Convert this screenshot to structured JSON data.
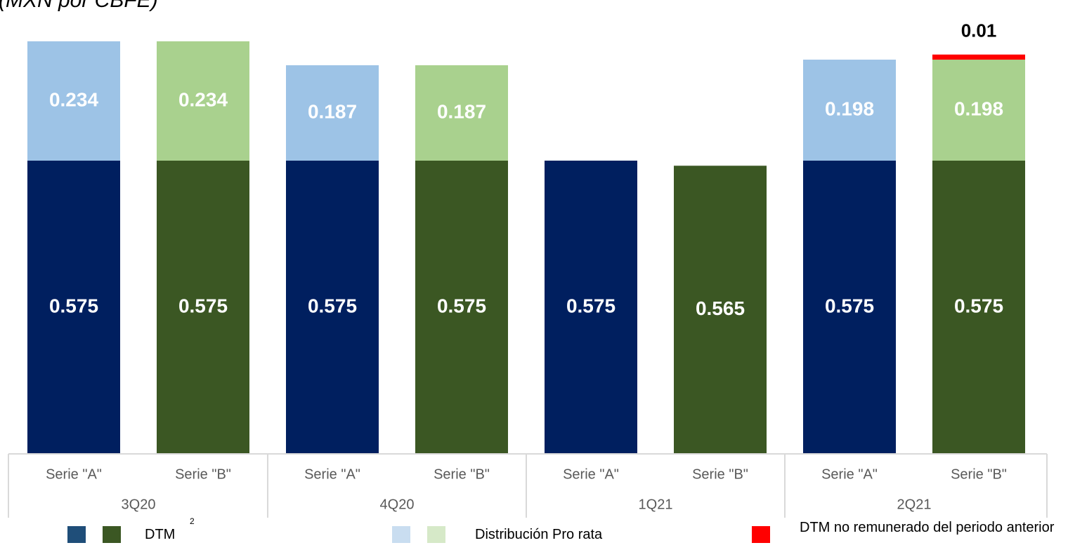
{
  "subtitle": "(MXN por CBFE)",
  "chart_data": {
    "type": "bar",
    "stacked": true,
    "groups": [
      "3Q20",
      "4Q20",
      "1Q21",
      "2Q21"
    ],
    "subcategories": [
      "Serie \"A\"",
      "Serie \"B\""
    ],
    "bars": [
      {
        "group": "3Q20",
        "label": "Serie \"A\"",
        "dtm": 0.575,
        "pro_rata": 0.234,
        "no_remunerado": 0,
        "dtm_label": "0.575",
        "pro_rata_label": "0.234",
        "no_remunerado_label": ""
      },
      {
        "group": "3Q20",
        "label": "Serie \"B\"",
        "dtm": 0.575,
        "pro_rata": 0.234,
        "no_remunerado": 0,
        "dtm_label": "0.575",
        "pro_rata_label": "0.234",
        "no_remunerado_label": ""
      },
      {
        "group": "4Q20",
        "label": "Serie \"A\"",
        "dtm": 0.575,
        "pro_rata": 0.187,
        "no_remunerado": 0,
        "dtm_label": "0.575",
        "pro_rata_label": "0.187",
        "no_remunerado_label": ""
      },
      {
        "group": "4Q20",
        "label": "Serie \"B\"",
        "dtm": 0.575,
        "pro_rata": 0.187,
        "no_remunerado": 0,
        "dtm_label": "0.575",
        "pro_rata_label": "0.187",
        "no_remunerado_label": ""
      },
      {
        "group": "1Q21",
        "label": "Serie \"A\"",
        "dtm": 0.575,
        "pro_rata": 0,
        "no_remunerado": 0,
        "dtm_label": "0.575",
        "pro_rata_label": "",
        "no_remunerado_label": ""
      },
      {
        "group": "1Q21",
        "label": "Serie \"B\"",
        "dtm": 0.565,
        "pro_rata": 0,
        "no_remunerado": 0,
        "dtm_label": "0.565",
        "pro_rata_label": "",
        "no_remunerado_label": ""
      },
      {
        "group": "2Q21",
        "label": "Serie \"A\"",
        "dtm": 0.575,
        "pro_rata": 0.198,
        "no_remunerado": 0,
        "dtm_label": "0.575",
        "pro_rata_label": "0.198",
        "no_remunerado_label": ""
      },
      {
        "group": "2Q21",
        "label": "Serie \"B\"",
        "dtm": 0.575,
        "pro_rata": 0.198,
        "no_remunerado": 0.01,
        "dtm_label": "0.575",
        "pro_rata_label": "0.198",
        "no_remunerado_label": "0.01"
      }
    ],
    "colors": {
      "serie_a_dtm": "#001f5f",
      "serie_b_dtm": "#3b5723",
      "serie_a_pro_rata": "#9dc3e6",
      "serie_b_pro_rata": "#a9d18e",
      "no_remunerado": "#ff0000",
      "legend_serie_a_dtm": "#1f4e79",
      "legend_serie_b_dtm": "#3b5723",
      "legend_serie_a_pro_rata": "#c9ddf0",
      "legend_serie_b_pro_rata": "#d6e9c8"
    },
    "legend": [
      {
        "label": "DTM",
        "superscript": "2"
      },
      {
        "label": "Distribución Pro rata"
      },
      {
        "label": "DTM no remunerado del periodo anterior"
      }
    ],
    "legend_position": "bottom",
    "grid": false
  }
}
